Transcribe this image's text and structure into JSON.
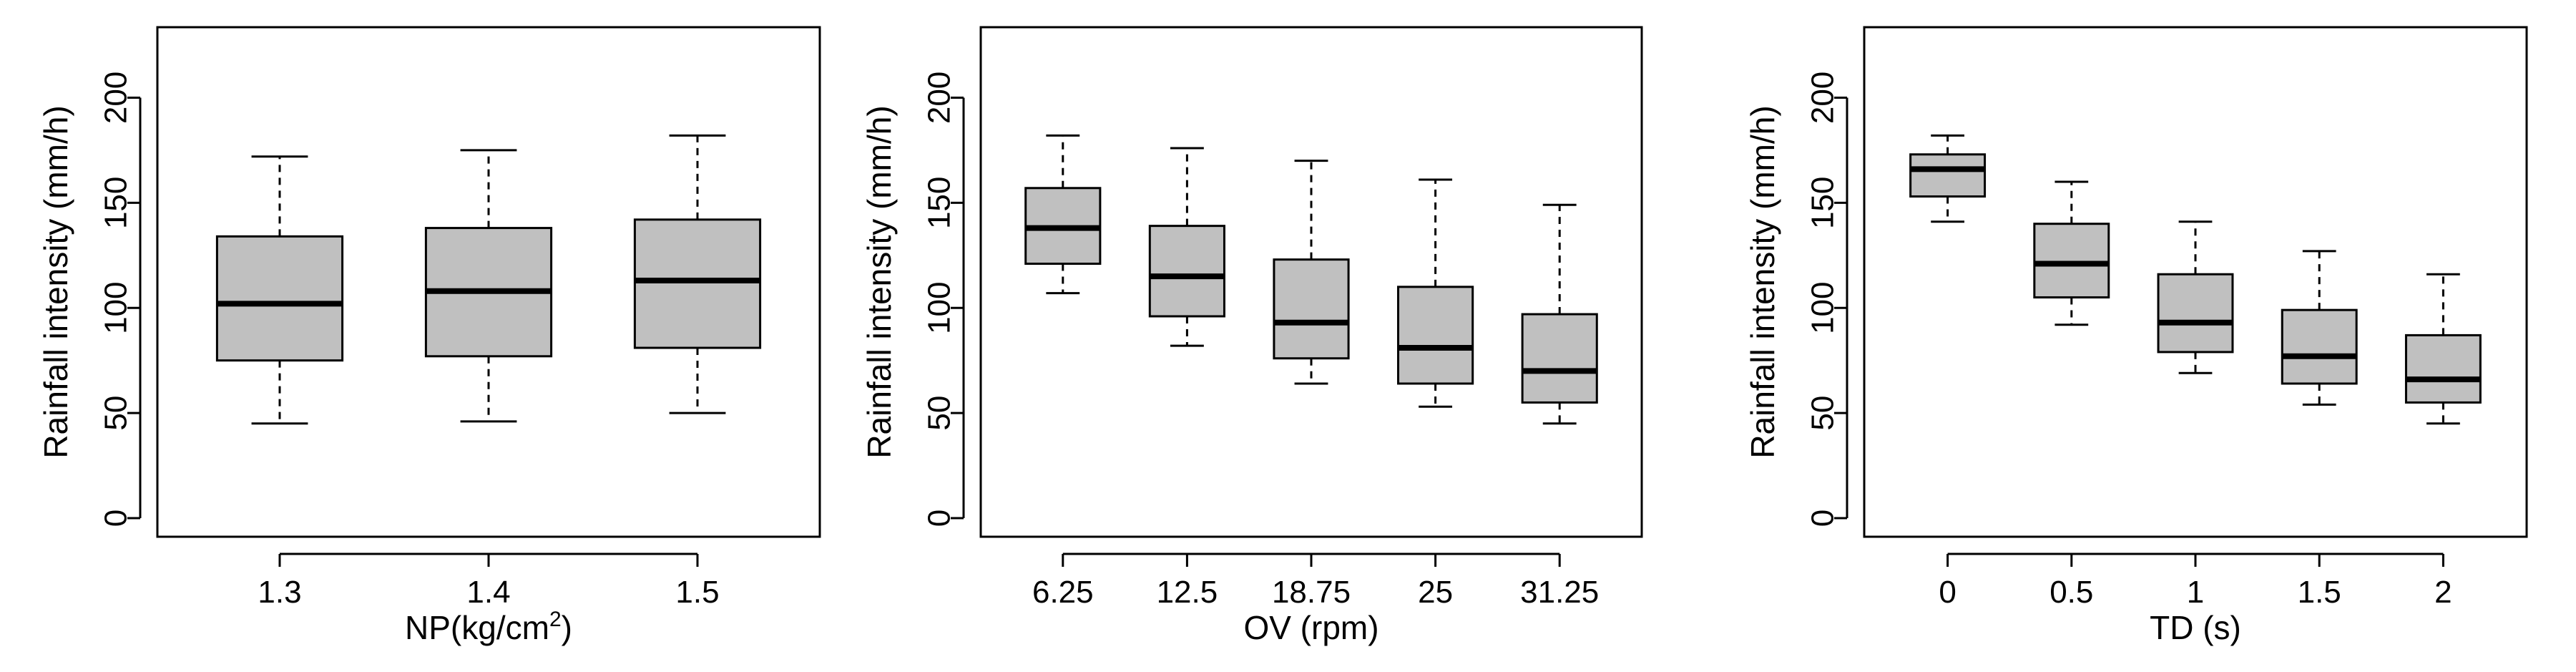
{
  "chart_data": [
    {
      "type": "boxplot",
      "xlabel": "NP(kg/cm",
      "xlabel_sup": "2",
      "xlabel_suffix": ")",
      "ylabel": "Rainfall intensity (mm/h)",
      "ylim": [
        0,
        225
      ],
      "yticks": [
        "0",
        "50",
        "100",
        "150",
        "200"
      ],
      "categories": [
        "1.3",
        "1.4",
        "1.5"
      ],
      "boxes": [
        {
          "min": 45,
          "q1": 75,
          "median": 102,
          "q3": 134,
          "max": 172
        },
        {
          "min": 46,
          "q1": 77,
          "median": 108,
          "q3": 138,
          "max": 175
        },
        {
          "min": 50,
          "q1": 81,
          "median": 113,
          "q3": 142,
          "max": 182
        }
      ]
    },
    {
      "type": "boxplot",
      "xlabel": "OV (rpm)",
      "ylabel": "Rainfall intensity (mm/h)",
      "ylim": [
        0,
        225
      ],
      "yticks": [
        "0",
        "50",
        "100",
        "150",
        "200"
      ],
      "categories": [
        "6.25",
        "12.5",
        "18.75",
        "25",
        "31.25"
      ],
      "boxes": [
        {
          "min": 107,
          "q1": 121,
          "median": 138,
          "q3": 157,
          "max": 182
        },
        {
          "min": 82,
          "q1": 96,
          "median": 115,
          "q3": 139,
          "max": 176
        },
        {
          "min": 64,
          "q1": 76,
          "median": 93,
          "q3": 123,
          "max": 170
        },
        {
          "min": 53,
          "q1": 64,
          "median": 81,
          "q3": 110,
          "max": 161
        },
        {
          "min": 45,
          "q1": 55,
          "median": 70,
          "q3": 97,
          "max": 149
        }
      ]
    },
    {
      "type": "boxplot",
      "xlabel": "TD (s)",
      "ylabel": "Rainfall intensity (mm/h)",
      "ylim": [
        0,
        225
      ],
      "yticks": [
        "0",
        "50",
        "100",
        "150",
        "200"
      ],
      "categories": [
        "0",
        "0.5",
        "1",
        "1.5",
        "2"
      ],
      "boxes": [
        {
          "min": 141,
          "q1": 153,
          "median": 166,
          "q3": 173,
          "max": 182
        },
        {
          "min": 92,
          "q1": 105,
          "median": 121,
          "q3": 140,
          "max": 160
        },
        {
          "min": 69,
          "q1": 79,
          "median": 93,
          "q3": 116,
          "max": 141
        },
        {
          "min": 54,
          "q1": 64,
          "median": 77,
          "q3": 99,
          "max": 127
        },
        {
          "min": 45,
          "q1": 55,
          "median": 66,
          "q3": 87,
          "max": 116
        }
      ]
    }
  ]
}
